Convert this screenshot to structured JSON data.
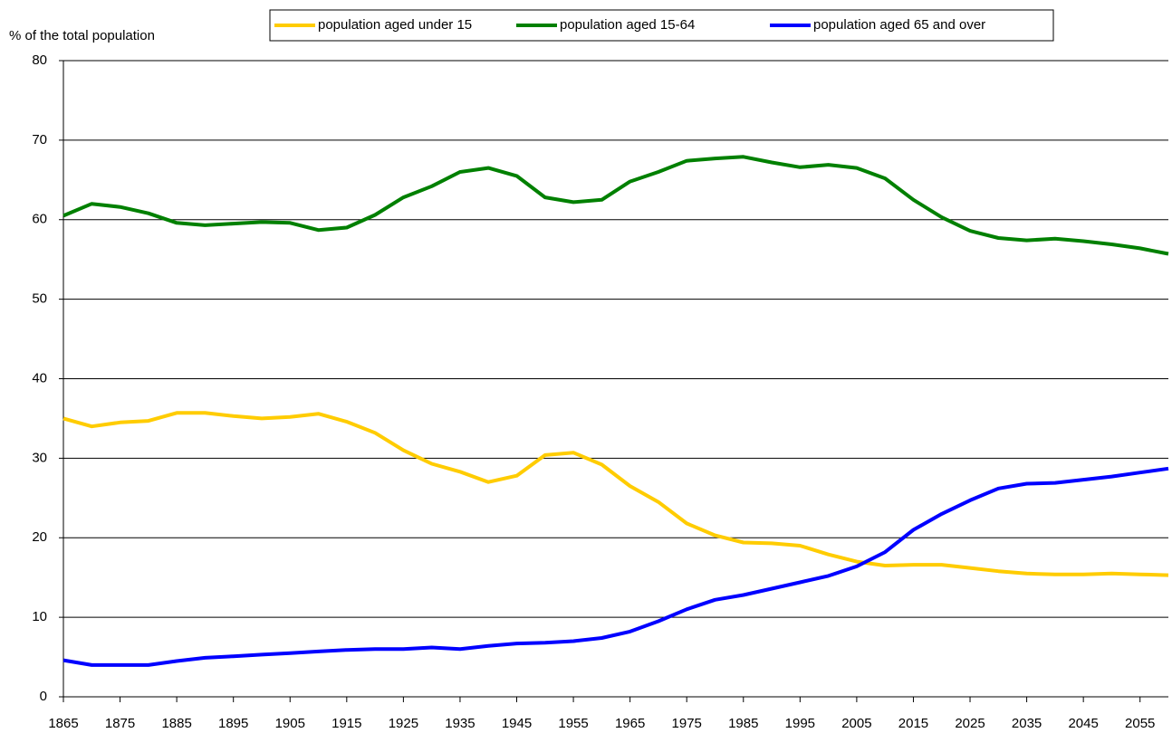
{
  "chart_data": {
    "type": "line",
    "y_axis_label": "% of the total population",
    "x": [
      1865,
      1870,
      1875,
      1880,
      1885,
      1890,
      1895,
      1900,
      1905,
      1910,
      1915,
      1920,
      1925,
      1930,
      1935,
      1940,
      1945,
      1950,
      1955,
      1960,
      1965,
      1970,
      1975,
      1980,
      1985,
      1990,
      1995,
      2000,
      2005,
      2010,
      2015,
      2020,
      2025,
      2030,
      2035,
      2040,
      2045,
      2050,
      2055,
      2060
    ],
    "series": [
      {
        "name": "population aged under 15",
        "color": "#ffcc00",
        "values": [
          35,
          34,
          34.5,
          34.7,
          35.7,
          35.7,
          35.3,
          35,
          35.2,
          35.6,
          34.6,
          33.2,
          31,
          29.3,
          28.3,
          27,
          27.8,
          30.4,
          30.7,
          29.2,
          26.5,
          24.5,
          21.8,
          20.3,
          19.4,
          19.3,
          19,
          17.9,
          17,
          16.5,
          16.6,
          16.6,
          16.2,
          15.8,
          15.5,
          15.4,
          15.4,
          15.5,
          15.4,
          15.3
        ]
      },
      {
        "name": "population aged 15-64",
        "color": "#008000",
        "values": [
          60.5,
          62,
          61.6,
          60.8,
          59.6,
          59.3,
          59.5,
          59.7,
          59.6,
          58.7,
          59,
          60.6,
          62.8,
          64.2,
          66,
          66.5,
          65.5,
          62.8,
          62.2,
          62.5,
          64.8,
          66,
          67.4,
          67.7,
          67.9,
          67.2,
          66.6,
          66.9,
          66.5,
          65.2,
          62.5,
          60.3,
          58.6,
          57.7,
          57.4,
          57.6,
          57.3,
          56.9,
          56.4,
          55.7
        ]
      },
      {
        "name": "population aged 65 and over",
        "color": "#0000ff",
        "values": [
          4.6,
          4,
          4,
          4,
          4.5,
          4.9,
          5.1,
          5.3,
          5.5,
          5.7,
          5.9,
          6,
          6,
          6.2,
          6,
          6.4,
          6.7,
          6.8,
          7,
          7.4,
          8.2,
          9.5,
          11,
          12.2,
          12.8,
          13.6,
          14.4,
          15.2,
          16.4,
          18.2,
          21,
          23,
          24.7,
          26.2,
          26.8,
          26.9,
          27.3,
          27.7,
          28.2,
          28.7
        ]
      }
    ],
    "xlim": [
      1865,
      2060
    ],
    "xticks": [
      1865,
      1875,
      1885,
      1895,
      1905,
      1915,
      1925,
      1935,
      1945,
      1955,
      1965,
      1975,
      1985,
      1995,
      2005,
      2015,
      2025,
      2035,
      2045,
      2055
    ],
    "ylim": [
      0,
      80
    ],
    "yticks": [
      0,
      10,
      20,
      30,
      40,
      50,
      60,
      70,
      80
    ],
    "grid": true,
    "legend": "top"
  }
}
